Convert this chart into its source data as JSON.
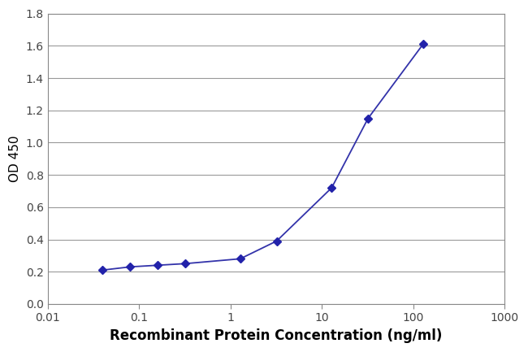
{
  "x_values": [
    0.04,
    0.08,
    0.16,
    0.32,
    1.28,
    3.2,
    12.8,
    32,
    128
  ],
  "y_values": [
    0.21,
    0.23,
    0.24,
    0.25,
    0.28,
    0.39,
    0.72,
    1.15,
    1.61
  ],
  "line_color": "#3333aa",
  "marker_color": "#2222aa",
  "marker_style": "D",
  "marker_size": 5,
  "line_width": 1.3,
  "xlabel": "Recombinant Protein Concentration (ng/ml)",
  "ylabel": "OD 450",
  "ylim": [
    0,
    1.8
  ],
  "yticks": [
    0,
    0.2,
    0.4,
    0.6,
    0.8,
    1.0,
    1.2,
    1.4,
    1.6,
    1.8
  ],
  "xtick_values": [
    0.01,
    0.1,
    1,
    10,
    100,
    1000
  ],
  "background_color": "#ffffff",
  "grid_color": "#999999",
  "xlabel_fontsize": 12,
  "ylabel_fontsize": 11,
  "tick_fontsize": 10,
  "fig_bg_color": "#ffffff"
}
